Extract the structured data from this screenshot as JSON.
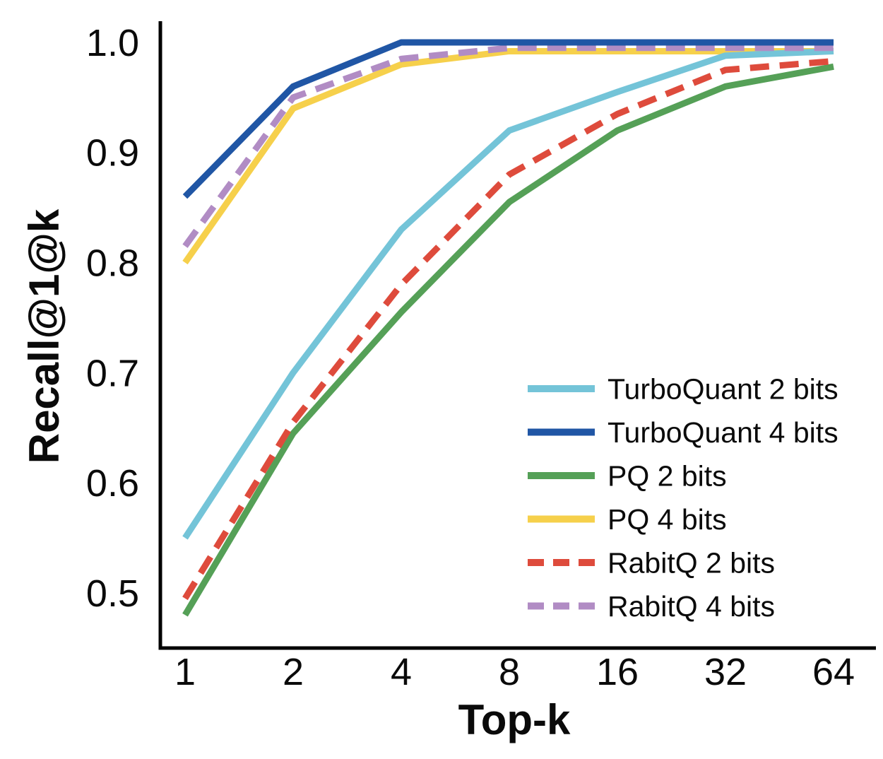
{
  "figure": {
    "background_color": "#ffffff",
    "axis_color": "#000000",
    "text_color": "#0a0a0a"
  },
  "chart_data": {
    "type": "line",
    "title": "",
    "xlabel": "Top-k",
    "ylabel": "Recall@1@k",
    "x_scale": "log2",
    "x": [
      1,
      2,
      4,
      8,
      16,
      32,
      64
    ],
    "x_tick_labels": [
      "1",
      "2",
      "4",
      "8",
      "16",
      "32",
      "64"
    ],
    "y_ticks": [
      1.0,
      0.9,
      0.8,
      0.7,
      0.6,
      0.5
    ],
    "y_tick_labels": [
      "1.0",
      "0.9",
      "0.8",
      "0.7",
      "0.6",
      "0.5"
    ],
    "ylim": [
      0.45,
      1.015
    ],
    "grid": false,
    "legend_position": "inside lower-right",
    "series": [
      {
        "name": "TurboQuant 2 bits",
        "color": "#74C4D8",
        "style": "solid",
        "values": [
          0.55,
          0.7,
          0.83,
          0.92,
          0.955,
          0.988,
          0.992
        ]
      },
      {
        "name": "TurboQuant 4 bits",
        "color": "#2056A5",
        "style": "solid",
        "values": [
          0.86,
          0.96,
          1.0,
          1.0,
          1.0,
          1.0,
          1.0
        ]
      },
      {
        "name": "PQ 2 bits",
        "color": "#55A057",
        "style": "solid",
        "values": [
          0.48,
          0.645,
          0.755,
          0.855,
          0.92,
          0.96,
          0.978
        ]
      },
      {
        "name": "PQ 4 bits",
        "color": "#F6D04B",
        "style": "solid",
        "values": [
          0.8,
          0.94,
          0.98,
          0.992,
          0.992,
          0.992,
          0.992
        ]
      },
      {
        "name": "RabitQ 2 bits",
        "color": "#DE4B3C",
        "style": "dashed",
        "values": [
          0.495,
          0.655,
          0.78,
          0.88,
          0.935,
          0.975,
          0.983
        ]
      },
      {
        "name": "RabitQ 4 bits",
        "color": "#B18CC4",
        "style": "dashed",
        "values": [
          0.815,
          0.95,
          0.985,
          0.995,
          0.995,
          0.995,
          0.995
        ]
      }
    ]
  }
}
